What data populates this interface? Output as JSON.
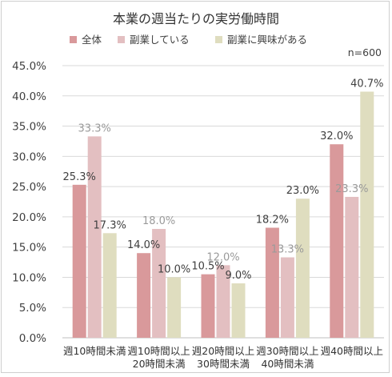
{
  "chart_data": {
    "type": "bar",
    "title": "本業の週当たりの実労働時間",
    "annotation": "n=600",
    "legend_position": "top",
    "grid": true,
    "ylim": [
      0,
      45
    ],
    "y_ticks": [
      "0.0%",
      "5.0%",
      "10.0%",
      "15.0%",
      "20.0%",
      "25.0%",
      "30.0%",
      "35.0%",
      "40.0%",
      "45.0%"
    ],
    "categories": [
      [
        "週10時間未満"
      ],
      [
        "週10時間以上",
        "20時間未満"
      ],
      [
        "週20時間以上",
        "30時間未満"
      ],
      [
        "週30時間以上",
        "40時間未満"
      ],
      [
        "週40時間以上"
      ]
    ],
    "series": [
      {
        "name": "全体",
        "color": "#d9999b",
        "label_color": "#404040",
        "values": [
          25.3,
          14.0,
          10.5,
          18.2,
          32.0
        ],
        "labels": [
          "25.3%",
          "14.0%",
          "10.5%",
          "18.2%",
          "32.0%"
        ]
      },
      {
        "name": "副業している",
        "color": "#e3bfc1",
        "label_color": "#9a9a9a",
        "values": [
          33.3,
          18.0,
          12.0,
          13.3,
          23.3
        ],
        "labels": [
          "33.3%",
          "18.0%",
          "12.0%",
          "13.3%",
          "23.3%"
        ]
      },
      {
        "name": "副業に興味がある",
        "color": "#dfddbf",
        "label_color": "#404040",
        "values": [
          17.3,
          10.0,
          9.0,
          23.0,
          40.7
        ],
        "labels": [
          "17.3%",
          "10.0%",
          "9.0%",
          "23.0%",
          "40.7%"
        ]
      }
    ]
  }
}
